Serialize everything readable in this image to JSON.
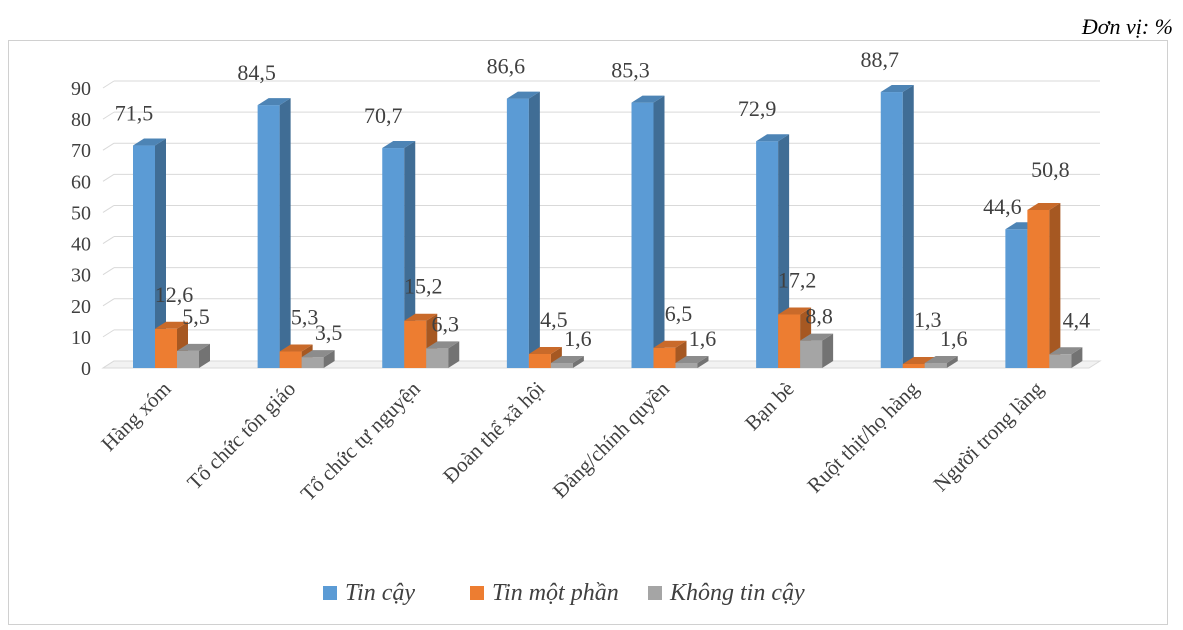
{
  "unit_label": "Đơn vị: %",
  "chart_data": {
    "type": "bar",
    "categories": [
      "Hàng xóm",
      "Tổ chức tôn giáo",
      "Tổ chức tự nguyện",
      "Đoàn thể xã hội",
      "Đảng/chính quyền",
      "Bạn bè",
      "Ruột thịt/họ hàng",
      "Người trong làng"
    ],
    "series": [
      {
        "name": "Tin cậy",
        "color": "#5b9bd5",
        "values": [
          71.5,
          84.5,
          70.7,
          86.6,
          85.3,
          72.9,
          88.7,
          44.6
        ],
        "labels": [
          "71,5",
          "84,5",
          "70,7",
          "86,6",
          "85,3",
          "72,9",
          "88,7",
          "44,6"
        ]
      },
      {
        "name": "Tin một phần",
        "color": "#ed7d31",
        "values": [
          12.6,
          5.3,
          15.2,
          4.5,
          6.5,
          17.2,
          1.3,
          50.8
        ],
        "labels": [
          "12,6",
          "5,3",
          "15,2",
          "4,5",
          "6,5",
          "17,2",
          "1,3",
          "50,8"
        ]
      },
      {
        "name": "Không tin cậy",
        "color": "#a5a5a5",
        "values": [
          5.5,
          3.5,
          6.3,
          1.6,
          1.6,
          8.8,
          1.6,
          4.4
        ],
        "labels": [
          "5,5",
          "3,5",
          "6,3",
          "1,6",
          "1,6",
          "8,8",
          "1,6",
          "4,4"
        ]
      }
    ],
    "yticks": [
      "0",
      "10",
      "20",
      "30",
      "40",
      "50",
      "60",
      "70",
      "80",
      "90"
    ],
    "ylim": [
      0,
      90
    ],
    "grid": true,
    "legend_position": "bottom",
    "style": "3d-clustered-column"
  }
}
